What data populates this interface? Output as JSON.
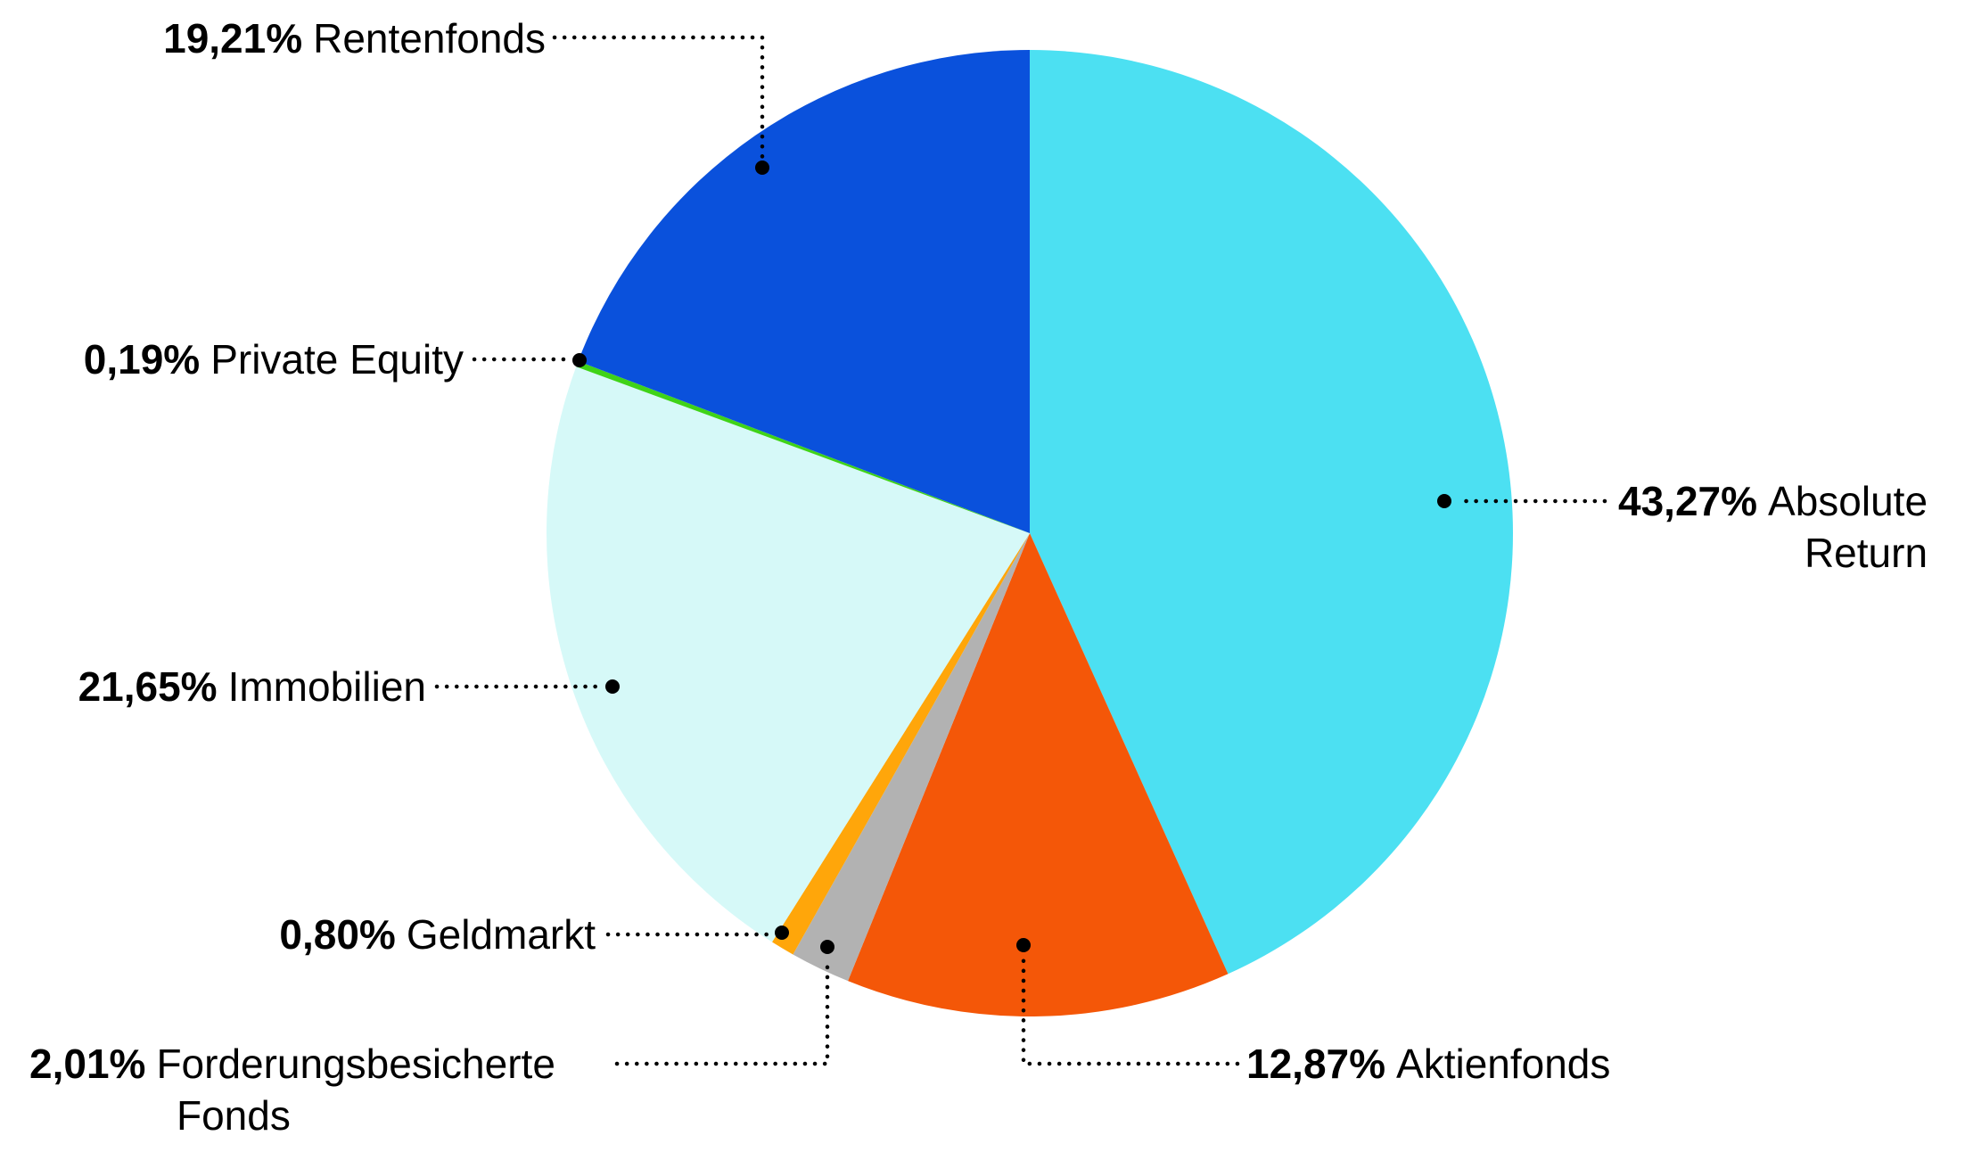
{
  "chart_data": {
    "type": "pie",
    "title": "",
    "start_angle": "12 o'clock",
    "direction": "clockwise",
    "legend_position": "none",
    "label_style": "external callouts with dotted leader lines and end dots",
    "total": 100.0,
    "slices": [
      {
        "label": "Absolute Return",
        "pct_label": "43,27%",
        "value": 43.27,
        "color": "#4CE0F2"
      },
      {
        "label": "Aktienfonds",
        "pct_label": "12,87%",
        "value": 12.87,
        "color": "#F45708"
      },
      {
        "label": "Forderungsbesicherte Fonds",
        "pct_label": "2,01%",
        "value": 2.01,
        "color": "#B2B2B2"
      },
      {
        "label": "Geldmarkt",
        "pct_label": "0,80%",
        "value": 0.8,
        "color": "#FFA60A"
      },
      {
        "label": "Immobilien",
        "pct_label": "21,65%",
        "value": 21.65,
        "color": "#D6F9F8"
      },
      {
        "label": "Private Equity",
        "pct_label": "0,19%",
        "value": 0.19,
        "color": "#3FD318"
      },
      {
        "label": "Rentenfonds",
        "pct_label": "19,21%",
        "value": 19.21,
        "color": "#0A51DC"
      }
    ]
  },
  "labels": {
    "rentenfonds": {
      "pct": "19,21%",
      "name": "Rentenfonds"
    },
    "private_equity": {
      "pct": "0,19%",
      "name": "Private Equity"
    },
    "immobilien": {
      "pct": "21,65%",
      "name": "Immobilien"
    },
    "geldmarkt": {
      "pct": "0,80%",
      "name": "Geldmarkt"
    },
    "forderungsbesicherte": {
      "pct": "2,01%",
      "name": "Forderungsbesicherte",
      "name_line2": "Fonds"
    },
    "aktienfonds": {
      "pct": "12,87%",
      "name": "Aktienfonds"
    },
    "absolute_return": {
      "pct": "43,27%",
      "name": "Absolute",
      "name_line2": "Return"
    }
  },
  "colors": {
    "leader_line": "#000000",
    "label_text": "#000000",
    "background": "#FFFFFF"
  }
}
